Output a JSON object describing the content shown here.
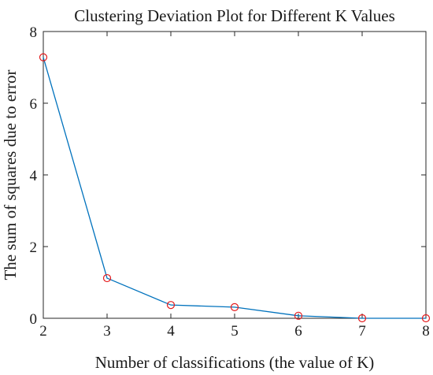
{
  "chart_data": {
    "type": "line",
    "title": "Clustering Deviation Plot for Different K Values",
    "xlabel": "Number of classifications (the value of K)",
    "ylabel": "The sum of squares due to error",
    "x": [
      2,
      3,
      4,
      5,
      6,
      7,
      8
    ],
    "series": [
      {
        "values": [
          7.28,
          1.12,
          0.37,
          0.31,
          0.07,
          0.0,
          0.0
        ]
      }
    ],
    "xlim": [
      2,
      8
    ],
    "ylim": [
      0,
      8
    ],
    "xticks": [
      "2",
      "3",
      "4",
      "5",
      "6",
      "7",
      "8"
    ],
    "yticks": [
      "0",
      "2",
      "4",
      "6",
      "8"
    ],
    "grid": false,
    "line_color": "#0072BD",
    "marker": "circle",
    "marker_color": "#E41A1C"
  }
}
